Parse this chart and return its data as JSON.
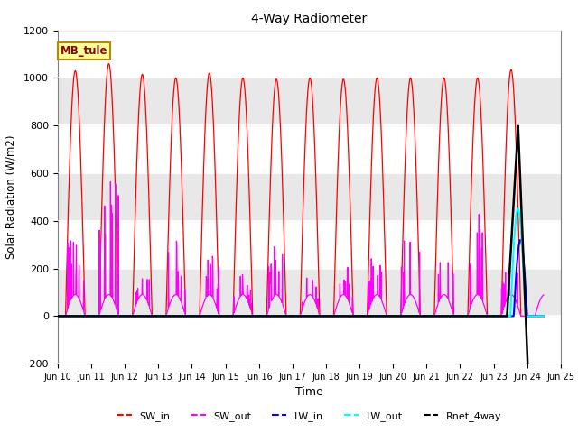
{
  "title": "4-Way Radiometer",
  "xlabel": "Time",
  "ylabel": "Solar Radiation (W/m2)",
  "ylim": [
    -200,
    1200
  ],
  "yticks": [
    -200,
    0,
    200,
    400,
    600,
    800,
    1000,
    1200
  ],
  "station_label": "MB_tule",
  "legend_entries": [
    "SW_in",
    "SW_out",
    "LW_in",
    "LW_out",
    "Rnet_4way"
  ],
  "legend_colors": [
    "red",
    "magenta",
    "blue",
    "cyan",
    "black"
  ],
  "background_color": "#ffffff",
  "band_color": "#e8e8e8",
  "band_ranges": [
    [
      0,
      200
    ],
    [
      400,
      600
    ],
    [
      800,
      1000
    ]
  ],
  "n_days": 15,
  "day_start": 10,
  "sw_in_peaks": [
    1030,
    1060,
    1015,
    1000,
    1020,
    1000,
    995,
    1000,
    995,
    1000,
    1000,
    1000,
    1000,
    1035
  ],
  "sw_out_base": 100,
  "sw_out_spikes": [
    280,
    540,
    120,
    320,
    230,
    90,
    210,
    90,
    150,
    200,
    270,
    170,
    340,
    270
  ],
  "lw_out_peak": 450,
  "lw_in_peak": 320,
  "rnet_peak": 800,
  "rnet_min": -150,
  "figsize": [
    6.4,
    4.8
  ],
  "dpi": 100
}
